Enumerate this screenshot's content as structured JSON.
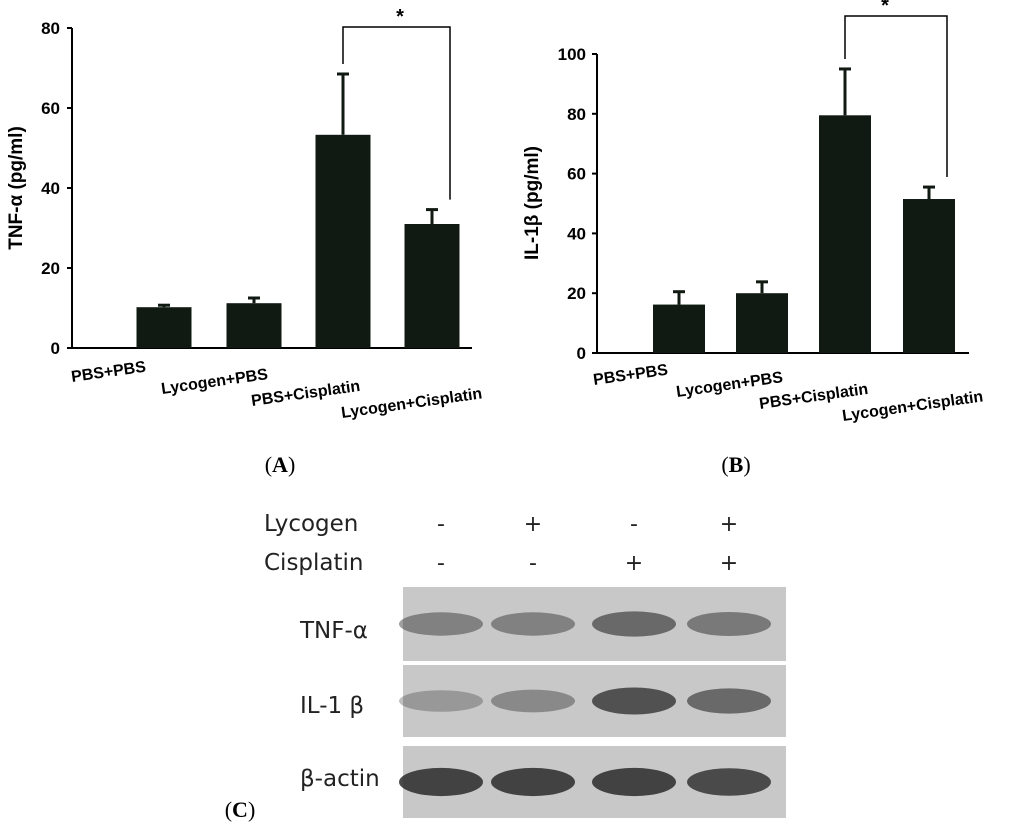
{
  "chart_data": [
    {
      "type": "bar",
      "ylabel": "TNF-α (pg/ml)",
      "categories": [
        "PBS+PBS",
        "Lycogen+PBS",
        "PBS+Cisplatin",
        "Lycogen+Cisplatin"
      ],
      "values": [
        10.2,
        11.2,
        53.3,
        31.0
      ],
      "errors": [
        0.5,
        1.3,
        15.2,
        3.6
      ],
      "ylim": [
        0,
        80
      ],
      "yticks": [
        "0",
        "20",
        "40",
        "60",
        "80"
      ],
      "significance": {
        "between": [
          "PBS+Cisplatin",
          "Lycogen+Cisplatin"
        ],
        "label": "*"
      },
      "panel": "(A)"
    },
    {
      "type": "bar",
      "ylabel": "IL-1β (pg/ml)",
      "categories": [
        "PBS+PBS",
        "Lycogen+PBS",
        "PBS+Cisplatin",
        "Lycogen+Cisplatin"
      ],
      "values": [
        16.2,
        20.0,
        79.5,
        51.5
      ],
      "errors": [
        4.3,
        3.8,
        15.5,
        4.0
      ],
      "ylim": [
        0,
        100
      ],
      "yticks": [
        "0",
        "20",
        "40",
        "60",
        "80",
        "100"
      ],
      "significance": {
        "between": [
          "PBS+Cisplatin",
          "Lycogen+Cisplatin"
        ],
        "label": "*"
      },
      "panel": "(B)"
    }
  ],
  "blot": {
    "panel": "(C)",
    "treatments": [
      {
        "name": "Lycogen",
        "signs": [
          "-",
          "+",
          "-",
          "+"
        ]
      },
      {
        "name": "Cisplatin",
        "signs": [
          "-",
          "-",
          "+",
          "+"
        ]
      }
    ],
    "rows": [
      {
        "name": "TNF-α",
        "intensity": [
          0.45,
          0.45,
          0.6,
          0.5
        ]
      },
      {
        "name": "IL-1 β",
        "intensity": [
          0.3,
          0.4,
          0.75,
          0.6
        ]
      },
      {
        "name": "β-actin",
        "intensity": [
          0.85,
          0.85,
          0.85,
          0.8
        ]
      }
    ]
  },
  "colors": {
    "bar": "#111a12",
    "axis": "#000000",
    "blot_bg": "#c8c8c8",
    "band": "#2a2a2a"
  }
}
